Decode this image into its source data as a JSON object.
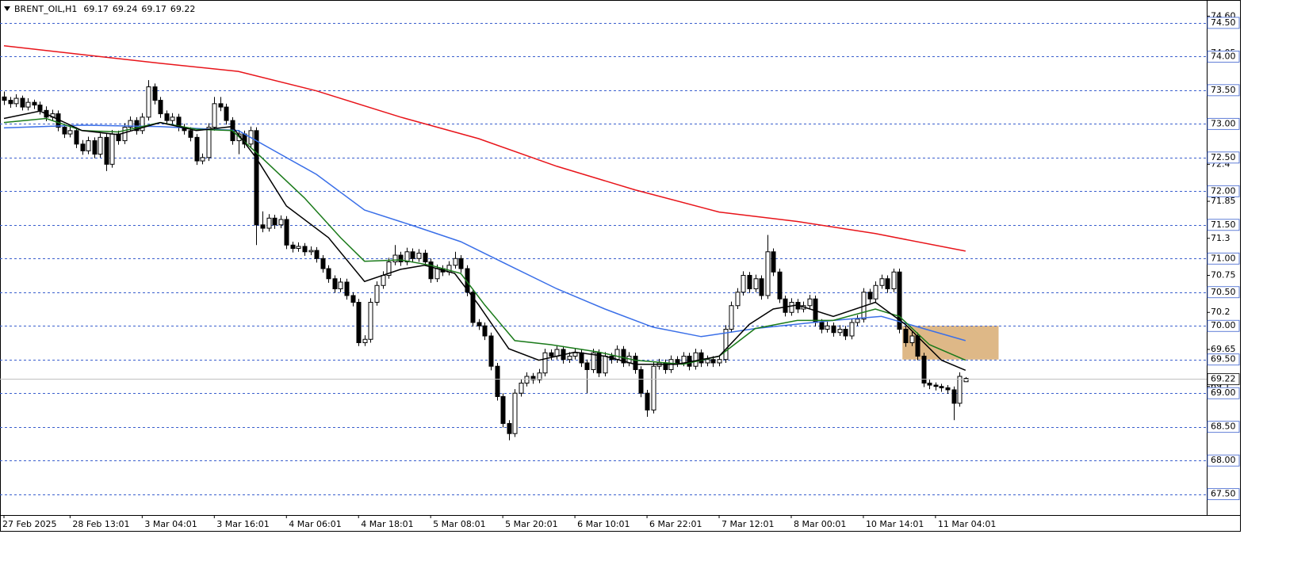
{
  "chart_data": {
    "type": "candlestick",
    "title": "BRENT_OIL,H1",
    "categories": [
      "27 Feb 2025",
      null,
      null,
      null,
      null,
      null,
      null,
      null,
      null,
      null,
      null,
      "28 Feb 13:01",
      null,
      null,
      null,
      null,
      null,
      null,
      null,
      null,
      null,
      null,
      null,
      "3 Mar 04:01",
      null,
      null,
      null,
      null,
      null,
      null,
      null,
      null,
      null,
      null,
      null,
      "3 Mar 16:01",
      null,
      null,
      null,
      null,
      null,
      null,
      null,
      null,
      null,
      null,
      null,
      "4 Mar 06:01",
      null,
      null,
      null,
      null,
      null,
      null,
      null,
      null,
      null,
      null,
      null,
      "4 Mar 18:01",
      null,
      null,
      null,
      null,
      null,
      null,
      null,
      null,
      null,
      null,
      null,
      "5 Mar 08:01",
      null,
      null,
      null,
      null,
      null,
      null,
      null,
      null,
      null,
      null,
      null,
      "5 Mar 20:01",
      null,
      null,
      null,
      null,
      null,
      null,
      null,
      null,
      null,
      null,
      null,
      "6 Mar 10:01",
      null,
      null,
      null,
      null,
      null,
      null,
      null,
      null,
      null,
      null,
      null,
      "6 Mar 22:01",
      null,
      null,
      null,
      null,
      null,
      null,
      null,
      null,
      null,
      null,
      null,
      "7 Mar 12:01",
      null,
      null,
      null,
      null,
      null,
      null,
      null,
      null,
      null,
      null,
      null,
      "8 Mar 00:01",
      null,
      null,
      null,
      null,
      null,
      null,
      null,
      null,
      null,
      null,
      null,
      "10 Mar 14:01",
      null,
      null,
      null,
      null,
      null,
      null,
      null,
      null,
      null,
      null,
      null,
      "11 Mar 04:01",
      null,
      null,
      null,
      null,
      null
    ],
    "candles": [
      [
        73.4,
        73.48,
        73.28,
        73.35
      ],
      [
        73.35,
        73.4,
        73.24,
        73.3
      ],
      [
        73.3,
        73.44,
        73.25,
        73.38
      ],
      [
        73.38,
        73.42,
        73.2,
        73.25
      ],
      [
        73.25,
        73.38,
        73.2,
        73.32
      ],
      [
        73.32,
        73.36,
        73.22,
        73.28
      ],
      [
        73.28,
        73.33,
        73.14,
        73.2
      ],
      [
        73.2,
        73.26,
        73.04,
        73.1
      ],
      [
        73.1,
        73.21,
        73.04,
        73.15
      ],
      [
        73.15,
        73.2,
        72.89,
        72.95
      ],
      [
        72.95,
        73.0,
        72.79,
        72.85
      ],
      [
        72.85,
        72.96,
        72.8,
        72.9
      ],
      [
        72.9,
        72.95,
        72.64,
        72.7
      ],
      [
        72.7,
        72.76,
        72.54,
        72.6
      ],
      [
        72.6,
        72.81,
        72.55,
        72.75
      ],
      [
        72.75,
        72.8,
        72.49,
        72.55
      ],
      [
        72.55,
        72.86,
        72.5,
        72.8
      ],
      [
        72.8,
        72.86,
        72.3,
        72.4
      ],
      [
        72.4,
        72.91,
        72.35,
        72.85
      ],
      [
        72.85,
        72.9,
        72.69,
        72.75
      ],
      [
        72.75,
        73.01,
        72.7,
        72.95
      ],
      [
        72.95,
        73.11,
        72.9,
        73.05
      ],
      [
        73.05,
        73.1,
        72.84,
        72.9
      ],
      [
        72.9,
        73.16,
        72.85,
        73.1
      ],
      [
        73.1,
        73.65,
        73.05,
        73.55
      ],
      [
        73.55,
        73.6,
        73.29,
        73.35
      ],
      [
        73.35,
        73.4,
        73.09,
        73.15
      ],
      [
        73.15,
        73.2,
        72.99,
        73.05
      ],
      [
        73.05,
        73.16,
        73.0,
        73.1
      ],
      [
        73.1,
        73.15,
        72.89,
        72.95
      ],
      [
        72.95,
        73.0,
        72.84,
        72.9
      ],
      [
        72.9,
        72.95,
        72.74,
        72.8
      ],
      [
        72.8,
        72.85,
        72.39,
        72.45
      ],
      [
        72.45,
        72.56,
        72.4,
        72.5
      ],
      [
        72.5,
        73.01,
        72.45,
        72.95
      ],
      [
        72.95,
        73.4,
        72.9,
        73.3
      ],
      [
        73.3,
        73.4,
        73.19,
        73.25
      ],
      [
        73.25,
        73.3,
        72.99,
        73.05
      ],
      [
        73.05,
        73.1,
        72.69,
        72.75
      ],
      [
        72.75,
        72.91,
        72.55,
        72.85
      ],
      [
        72.85,
        72.9,
        72.64,
        72.7
      ],
      [
        72.7,
        72.96,
        72.65,
        72.9
      ],
      [
        72.9,
        72.95,
        71.2,
        71.5
      ],
      [
        71.5,
        71.7,
        71.39,
        71.45
      ],
      [
        71.45,
        71.66,
        71.4,
        71.6
      ],
      [
        71.6,
        71.65,
        71.44,
        71.5
      ],
      [
        71.5,
        71.64,
        71.45,
        71.58
      ],
      [
        71.58,
        71.63,
        71.14,
        71.2
      ],
      [
        71.2,
        71.25,
        71.09,
        71.15
      ],
      [
        71.15,
        71.24,
        71.1,
        71.18
      ],
      [
        71.18,
        71.23,
        71.04,
        71.1
      ],
      [
        71.1,
        71.18,
        71.05,
        71.12
      ],
      [
        71.12,
        71.17,
        70.94,
        71.0
      ],
      [
        71.0,
        71.05,
        70.79,
        70.85
      ],
      [
        70.85,
        70.9,
        70.64,
        70.7
      ],
      [
        70.7,
        70.75,
        70.49,
        70.55
      ],
      [
        70.55,
        70.71,
        70.5,
        70.65
      ],
      [
        70.65,
        70.7,
        70.39,
        70.45
      ],
      [
        70.45,
        70.5,
        70.29,
        70.35
      ],
      [
        70.35,
        70.4,
        69.7,
        69.75
      ],
      [
        69.75,
        69.86,
        69.7,
        69.8
      ],
      [
        69.8,
        70.41,
        69.75,
        70.35
      ],
      [
        70.35,
        70.66,
        70.3,
        70.6
      ],
      [
        70.6,
        70.81,
        70.55,
        70.75
      ],
      [
        70.75,
        71.01,
        70.7,
        70.95
      ],
      [
        70.95,
        71.2,
        70.9,
        71.05
      ],
      [
        71.05,
        71.1,
        70.89,
        70.95
      ],
      [
        70.95,
        71.16,
        70.9,
        71.1
      ],
      [
        71.1,
        71.15,
        70.94,
        71.0
      ],
      [
        71.0,
        71.14,
        70.95,
        71.08
      ],
      [
        71.08,
        71.13,
        70.89,
        70.95
      ],
      [
        70.95,
        71.0,
        70.64,
        70.7
      ],
      [
        70.7,
        70.91,
        70.65,
        70.85
      ],
      [
        70.85,
        70.9,
        70.74,
        70.8
      ],
      [
        70.8,
        70.96,
        70.75,
        70.9
      ],
      [
        70.9,
        71.1,
        70.85,
        71.0
      ],
      [
        71.0,
        71.05,
        70.79,
        70.85
      ],
      [
        70.85,
        70.9,
        70.44,
        70.5
      ],
      [
        70.5,
        70.55,
        69.99,
        70.05
      ],
      [
        70.05,
        70.1,
        69.94,
        70.0
      ],
      [
        70.0,
        70.05,
        69.79,
        69.85
      ],
      [
        69.85,
        69.9,
        69.34,
        69.4
      ],
      [
        69.4,
        69.45,
        68.89,
        68.95
      ],
      [
        68.95,
        69.0,
        68.49,
        68.55
      ],
      [
        68.55,
        68.6,
        68.3,
        68.4
      ],
      [
        68.4,
        69.06,
        68.35,
        69.0
      ],
      [
        69.0,
        69.21,
        68.95,
        69.15
      ],
      [
        69.15,
        69.31,
        69.1,
        69.25
      ],
      [
        69.25,
        69.3,
        69.14,
        69.2
      ],
      [
        69.2,
        69.36,
        69.15,
        69.3
      ],
      [
        69.3,
        69.66,
        69.25,
        69.6
      ],
      [
        69.6,
        69.65,
        69.49,
        69.55
      ],
      [
        69.55,
        69.71,
        69.5,
        69.65
      ],
      [
        69.65,
        69.7,
        69.44,
        69.5
      ],
      [
        69.5,
        69.61,
        69.45,
        69.55
      ],
      [
        69.55,
        69.66,
        69.5,
        69.6
      ],
      [
        69.6,
        69.65,
        69.39,
        69.45
      ],
      [
        69.45,
        69.5,
        69.0,
        69.35
      ],
      [
        69.35,
        69.66,
        69.3,
        69.6
      ],
      [
        69.6,
        69.65,
        69.24,
        69.3
      ],
      [
        69.3,
        69.61,
        69.25,
        69.55
      ],
      [
        69.55,
        69.6,
        69.44,
        69.5
      ],
      [
        69.5,
        69.71,
        69.45,
        69.65
      ],
      [
        69.65,
        69.7,
        69.39,
        69.45
      ],
      [
        69.45,
        69.61,
        69.4,
        69.55
      ],
      [
        69.55,
        69.6,
        69.29,
        69.35
      ],
      [
        69.35,
        69.4,
        68.94,
        69.0
      ],
      [
        69.0,
        69.05,
        68.65,
        68.75
      ],
      [
        68.75,
        69.46,
        68.7,
        69.4
      ],
      [
        69.4,
        69.51,
        69.35,
        69.45
      ],
      [
        69.45,
        69.5,
        69.29,
        69.35
      ],
      [
        69.35,
        69.56,
        69.3,
        69.5
      ],
      [
        69.5,
        69.55,
        69.39,
        69.45
      ],
      [
        69.45,
        69.61,
        69.4,
        69.55
      ],
      [
        69.55,
        69.6,
        69.34,
        69.4
      ],
      [
        69.4,
        69.66,
        69.35,
        69.6
      ],
      [
        69.6,
        69.65,
        69.39,
        69.45
      ],
      [
        69.45,
        69.56,
        69.4,
        69.5
      ],
      [
        69.5,
        69.55,
        69.39,
        69.45
      ],
      [
        69.45,
        69.56,
        69.4,
        69.5
      ],
      [
        69.5,
        70.01,
        69.45,
        69.95
      ],
      [
        69.95,
        70.36,
        69.9,
        70.3
      ],
      [
        70.3,
        70.56,
        70.25,
        70.5
      ],
      [
        70.5,
        70.81,
        70.45,
        70.75
      ],
      [
        70.75,
        70.8,
        70.49,
        70.55
      ],
      [
        70.55,
        70.76,
        70.5,
        70.7
      ],
      [
        70.7,
        70.75,
        70.39,
        70.45
      ],
      [
        70.45,
        71.35,
        70.4,
        71.1
      ],
      [
        71.1,
        71.15,
        70.74,
        70.8
      ],
      [
        70.8,
        70.85,
        70.34,
        70.4
      ],
      [
        70.4,
        70.45,
        70.14,
        70.2
      ],
      [
        70.2,
        70.41,
        70.15,
        70.35
      ],
      [
        70.35,
        70.4,
        70.19,
        70.25
      ],
      [
        70.25,
        70.36,
        70.2,
        70.3
      ],
      [
        70.3,
        70.46,
        70.25,
        70.4
      ],
      [
        70.4,
        70.45,
        69.99,
        70.05
      ],
      [
        70.05,
        70.1,
        69.89,
        69.95
      ],
      [
        69.95,
        70.06,
        69.9,
        70.0
      ],
      [
        70.0,
        70.05,
        69.84,
        69.9
      ],
      [
        69.9,
        70.01,
        69.85,
        69.95
      ],
      [
        69.95,
        70.0,
        69.79,
        69.85
      ],
      [
        69.85,
        70.11,
        69.8,
        70.05
      ],
      [
        70.05,
        70.16,
        70.0,
        70.1
      ],
      [
        70.1,
        70.56,
        70.05,
        70.5
      ],
      [
        70.5,
        70.55,
        70.34,
        70.4
      ],
      [
        70.4,
        70.66,
        70.35,
        70.6
      ],
      [
        70.6,
        70.76,
        70.55,
        70.7
      ],
      [
        70.7,
        70.75,
        70.49,
        70.55
      ],
      [
        70.55,
        70.85,
        70.5,
        70.8
      ],
      [
        70.8,
        70.85,
        69.89,
        69.95
      ],
      [
        69.95,
        70.0,
        69.69,
        69.75
      ],
      [
        69.75,
        69.91,
        69.7,
        69.85
      ],
      [
        69.85,
        69.9,
        69.49,
        69.55
      ],
      [
        69.55,
        69.6,
        69.09,
        69.15
      ],
      [
        69.15,
        69.2,
        69.06,
        69.12
      ],
      [
        69.12,
        69.16,
        69.04,
        69.1
      ],
      [
        69.1,
        69.14,
        69.02,
        69.08
      ],
      [
        69.08,
        69.12,
        68.99,
        69.05
      ],
      [
        69.05,
        69.1,
        68.6,
        68.85
      ],
      [
        68.85,
        69.31,
        68.8,
        69.25
      ],
      [
        69.17,
        69.24,
        69.17,
        69.22
      ]
    ],
    "bull_color": "#ffffff",
    "bear_color": "#000000",
    "series": [
      {
        "color": "#e8141a",
        "x": [
          0,
          26,
          39,
          52,
          66,
          79,
          92,
          105,
          119,
          132,
          145,
          160
        ],
        "values": [
          74.16,
          73.9,
          73.78,
          73.49,
          73.1,
          72.78,
          72.37,
          72.02,
          71.69,
          71.55,
          71.37,
          71.11
        ]
      },
      {
        "color": "#3a6fe8",
        "x": [
          0,
          13,
          26,
          39,
          46,
          52,
          60,
          68,
          76,
          84,
          92,
          100,
          108,
          116,
          125,
          138,
          146,
          153,
          160
        ],
        "values": [
          72.94,
          72.98,
          72.96,
          72.9,
          72.55,
          72.25,
          71.72,
          71.49,
          71.25,
          70.9,
          70.55,
          70.25,
          69.98,
          69.84,
          69.96,
          70.08,
          70.14,
          69.96,
          69.78
        ]
      },
      {
        "color": "#1a7a1a",
        "x": [
          0,
          7,
          13,
          19,
          26,
          32,
          38,
          43,
          50,
          56,
          60,
          66,
          71,
          76,
          80,
          85,
          91,
          99,
          105,
          113,
          119,
          125,
          132,
          138,
          145,
          149,
          154,
          160
        ],
        "values": [
          73.02,
          73.08,
          72.9,
          72.88,
          73.02,
          72.92,
          72.9,
          72.49,
          71.9,
          71.31,
          70.96,
          70.98,
          70.9,
          70.78,
          70.31,
          69.78,
          69.72,
          69.61,
          69.49,
          69.43,
          69.55,
          69.96,
          70.08,
          70.08,
          70.25,
          70.14,
          69.72,
          69.49
        ]
      },
      {
        "color": "#000000",
        "x": [
          0,
          6,
          13,
          19,
          26,
          32,
          38,
          42,
          47,
          54,
          60,
          66,
          70,
          75,
          79,
          84,
          89,
          95,
          100,
          105,
          112,
          119,
          124,
          128,
          132,
          138,
          145,
          150,
          156,
          160
        ],
        "values": [
          73.08,
          73.19,
          72.9,
          72.84,
          73.02,
          72.9,
          72.96,
          72.49,
          71.78,
          71.31,
          70.66,
          70.84,
          70.9,
          70.78,
          70.31,
          69.66,
          69.49,
          69.61,
          69.55,
          69.43,
          69.43,
          69.55,
          70.02,
          70.25,
          70.31,
          70.14,
          70.35,
          70.02,
          69.49,
          69.34
        ]
      }
    ],
    "zone": {
      "x": [
        149.5,
        165.5
      ],
      "y": [
        69.5,
        70.0
      ],
      "color": "#deb887"
    },
    "ylim": [
      67.19,
      74.84
    ],
    "yticks": [
      {
        "value": 74.6,
        "label": "74.60"
      },
      74.05,
      72.4,
      71.85,
      71.3,
      70.75,
      70.2,
      69.65,
      69.1
    ],
    "levels": [
      {
        "value": 74.5,
        "label": "74.50"
      },
      {
        "value": 74,
        "label": "74.00"
      },
      {
        "value": 73.5,
        "label": "73.50"
      },
      {
        "value": 73,
        "label": "73.00"
      },
      {
        "value": 72.5,
        "label": "72.50"
      },
      {
        "value": 72,
        "label": "72.00"
      },
      {
        "value": 71.5,
        "label": "71.50"
      },
      {
        "value": 71,
        "label": "71.00"
      },
      {
        "value": 70.5,
        "label": "70.50"
      },
      {
        "value": 70,
        "label": "70.00"
      },
      {
        "value": 69.5,
        "label": "69.50"
      },
      {
        "value": 69,
        "label": "69.00"
      },
      {
        "value": 68.5,
        "label": "68.50"
      },
      {
        "value": 68,
        "label": "68.00"
      },
      {
        "value": 67.5,
        "label": "67.50"
      }
    ],
    "level_color": "#3a5fcd"
  }
}
